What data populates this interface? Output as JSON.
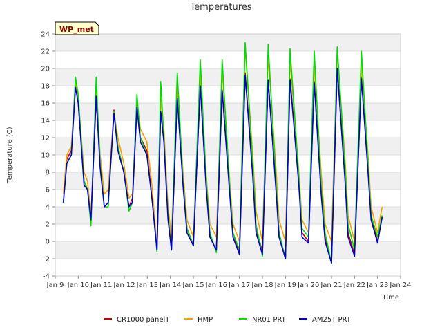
{
  "chart_data": {
    "type": "line",
    "title": "Temperatures",
    "xlabel": "Time",
    "ylabel": "Temperature (C)",
    "badge": "WP_met",
    "x_ticks": [
      "Jan 9",
      "Jan 10",
      "Jan 11",
      "Jan 12",
      "Jan 13",
      "Jan 14",
      "Jan 15",
      "Jan 16",
      "Jan 17",
      "Jan 18",
      "Jan 19",
      "Jan 20",
      "Jan 21",
      "Jan 22",
      "Jan 23",
      "Jan 24"
    ],
    "xlim": [
      9,
      24
    ],
    "ylim": [
      -4,
      24
    ],
    "y_ticks": [
      -4,
      -2,
      0,
      2,
      4,
      6,
      8,
      10,
      12,
      14,
      16,
      18,
      20,
      22,
      24
    ],
    "legend_position": "bottom",
    "grid": "horizontal bands",
    "series": [
      {
        "name": "CR1000 panelT",
        "color": "#cc0000",
        "x": [
          9.35,
          9.5,
          9.7,
          9.88,
          10.0,
          10.25,
          10.4,
          10.55,
          10.78,
          10.95,
          11.13,
          11.3,
          11.55,
          11.72,
          11.98,
          12.2,
          12.35,
          12.55,
          12.7,
          12.98,
          13.2,
          13.42,
          13.58,
          13.72,
          13.9,
          14.05,
          14.3,
          14.55,
          14.72,
          15.0,
          15.3,
          15.55,
          15.72,
          16.0,
          16.25,
          16.55,
          16.72,
          17.0,
          17.25,
          17.58,
          17.72,
          18.0,
          18.25,
          18.6,
          18.72,
          19.0,
          19.2,
          19.58,
          19.72,
          20.0,
          20.25,
          20.55,
          20.72,
          21.0,
          21.25,
          21.6,
          21.72,
          22.0,
          22.3,
          22.6,
          22.72,
          23.0,
          23.2
        ],
        "y": [
          4.5,
          9.5,
          10.5,
          18.0,
          16.0,
          7.0,
          6.0,
          2.7,
          16.5,
          9.0,
          4.0,
          4.5,
          15.2,
          11.0,
          8.0,
          4.0,
          5.0,
          15.5,
          12.0,
          10.5,
          5.0,
          -1.0,
          15.0,
          12.0,
          3.0,
          -1.0,
          16.5,
          7.0,
          1.5,
          -0.4,
          18.0,
          7.0,
          0.5,
          -1.0,
          17.5,
          7.0,
          1.0,
          -1.3,
          19.5,
          8.0,
          1.5,
          -1.2,
          18.7,
          6.0,
          1.0,
          -2.0,
          18.8,
          7.0,
          1.0,
          0.0,
          18.5,
          6.0,
          0.5,
          -2.5,
          20.0,
          7.0,
          1.0,
          -1.5,
          19.0,
          8.0,
          3.0,
          0.0,
          3.0
        ]
      },
      {
        "name": "HMP",
        "color": "#f5a000",
        "x": [
          9.35,
          9.5,
          9.7,
          9.88,
          10.0,
          10.25,
          10.4,
          10.55,
          10.78,
          10.95,
          11.13,
          11.3,
          11.55,
          11.72,
          11.98,
          12.2,
          12.35,
          12.55,
          12.7,
          12.98,
          13.2,
          13.42,
          13.58,
          13.72,
          13.9,
          14.05,
          14.3,
          14.55,
          14.72,
          15.0,
          15.3,
          15.55,
          15.72,
          16.0,
          16.25,
          16.55,
          16.72,
          17.0,
          17.25,
          17.58,
          17.72,
          18.0,
          18.25,
          18.6,
          18.72,
          19.0,
          19.2,
          19.58,
          19.72,
          20.0,
          20.25,
          20.55,
          20.72,
          21.0,
          21.25,
          21.6,
          21.72,
          22.0,
          22.3,
          22.6,
          22.72,
          23.0,
          23.2
        ],
        "y": [
          5.5,
          10.0,
          11.0,
          18.5,
          16.5,
          8.0,
          7.0,
          3.0,
          17.5,
          10.0,
          5.5,
          6.0,
          15.0,
          12.0,
          9.0,
          5.0,
          5.5,
          16.0,
          13.0,
          11.5,
          6.5,
          -0.5,
          16.5,
          13.0,
          4.0,
          0.5,
          18.0,
          8.0,
          2.5,
          0.5,
          19.5,
          8.0,
          2.0,
          0.5,
          20.0,
          8.0,
          2.0,
          0.0,
          22.5,
          10.0,
          3.5,
          0.0,
          21.5,
          8.0,
          2.5,
          0.0,
          21.0,
          8.0,
          2.5,
          1.0,
          20.5,
          8.0,
          2.0,
          0.0,
          22.0,
          9.0,
          3.0,
          0.0,
          20.5,
          9.5,
          4.0,
          1.0,
          4.0
        ]
      },
      {
        "name": "NR01 PRT",
        "color": "#00dd00",
        "x": [
          9.35,
          9.5,
          9.7,
          9.88,
          10.0,
          10.25,
          10.4,
          10.55,
          10.78,
          10.95,
          11.13,
          11.3,
          11.55,
          11.72,
          11.98,
          12.2,
          12.35,
          12.55,
          12.7,
          12.98,
          13.2,
          13.42,
          13.58,
          13.72,
          13.9,
          14.05,
          14.3,
          14.55,
          14.72,
          15.0,
          15.3,
          15.55,
          15.72,
          16.0,
          16.25,
          16.55,
          16.72,
          17.0,
          17.25,
          17.58,
          17.72,
          18.0,
          18.25,
          18.6,
          18.72,
          19.0,
          19.2,
          19.58,
          19.72,
          20.0,
          20.25,
          20.55,
          20.72,
          21.0,
          21.25,
          21.6,
          21.72,
          22.0,
          22.3,
          22.6,
          22.72,
          23.0,
          23.2
        ],
        "y": [
          4.5,
          9.0,
          10.0,
          19.0,
          17.0,
          7.0,
          6.0,
          1.8,
          19.0,
          9.0,
          4.0,
          4.0,
          15.0,
          11.0,
          8.0,
          3.5,
          4.5,
          17.0,
          12.0,
          10.0,
          5.0,
          -1.2,
          18.5,
          12.0,
          3.0,
          -1.0,
          19.5,
          7.0,
          1.5,
          -0.5,
          21.0,
          7.5,
          1.0,
          -1.3,
          21.0,
          7.5,
          1.0,
          -1.0,
          23.0,
          9.0,
          2.0,
          -1.7,
          22.8,
          6.5,
          1.0,
          -2.0,
          22.3,
          7.5,
          1.5,
          0.5,
          22.0,
          6.5,
          1.0,
          -2.5,
          22.5,
          8.0,
          2.0,
          -1.0,
          22.0,
          8.5,
          3.0,
          0.5,
          3.0
        ]
      },
      {
        "name": "AM25T PRT",
        "color": "#0000cc",
        "x": [
          9.35,
          9.5,
          9.7,
          9.88,
          10.0,
          10.25,
          10.4,
          10.55,
          10.78,
          10.95,
          11.13,
          11.3,
          11.55,
          11.72,
          11.98,
          12.2,
          12.35,
          12.55,
          12.7,
          12.98,
          13.2,
          13.42,
          13.58,
          13.72,
          13.9,
          14.05,
          14.3,
          14.55,
          14.72,
          15.0,
          15.3,
          15.55,
          15.72,
          16.0,
          16.25,
          16.55,
          16.72,
          17.0,
          17.25,
          17.58,
          17.72,
          18.0,
          18.25,
          18.6,
          18.72,
          19.0,
          19.2,
          19.58,
          19.72,
          20.0,
          20.25,
          20.55,
          20.72,
          21.0,
          21.25,
          21.6,
          21.72,
          22.0,
          22.3,
          22.6,
          22.72,
          23.0,
          23.2
        ],
        "y": [
          4.5,
          9.0,
          10.0,
          17.8,
          16.0,
          6.5,
          6.0,
          2.5,
          16.8,
          8.5,
          4.0,
          4.5,
          14.8,
          10.5,
          8.0,
          4.0,
          4.5,
          15.5,
          11.5,
          10.0,
          5.0,
          -1.0,
          15.0,
          11.5,
          2.5,
          -1.0,
          16.5,
          6.5,
          1.0,
          -0.5,
          18.0,
          6.5,
          0.5,
          -1.0,
          17.5,
          6.5,
          0.5,
          -1.5,
          19.2,
          7.5,
          1.0,
          -1.5,
          18.7,
          5.5,
          0.5,
          -2.0,
          18.7,
          6.5,
          0.5,
          -0.2,
          18.3,
          5.5,
          0.0,
          -2.5,
          20.0,
          6.5,
          0.5,
          -1.7,
          18.8,
          7.5,
          2.5,
          -0.2,
          2.8
        ]
      }
    ]
  }
}
